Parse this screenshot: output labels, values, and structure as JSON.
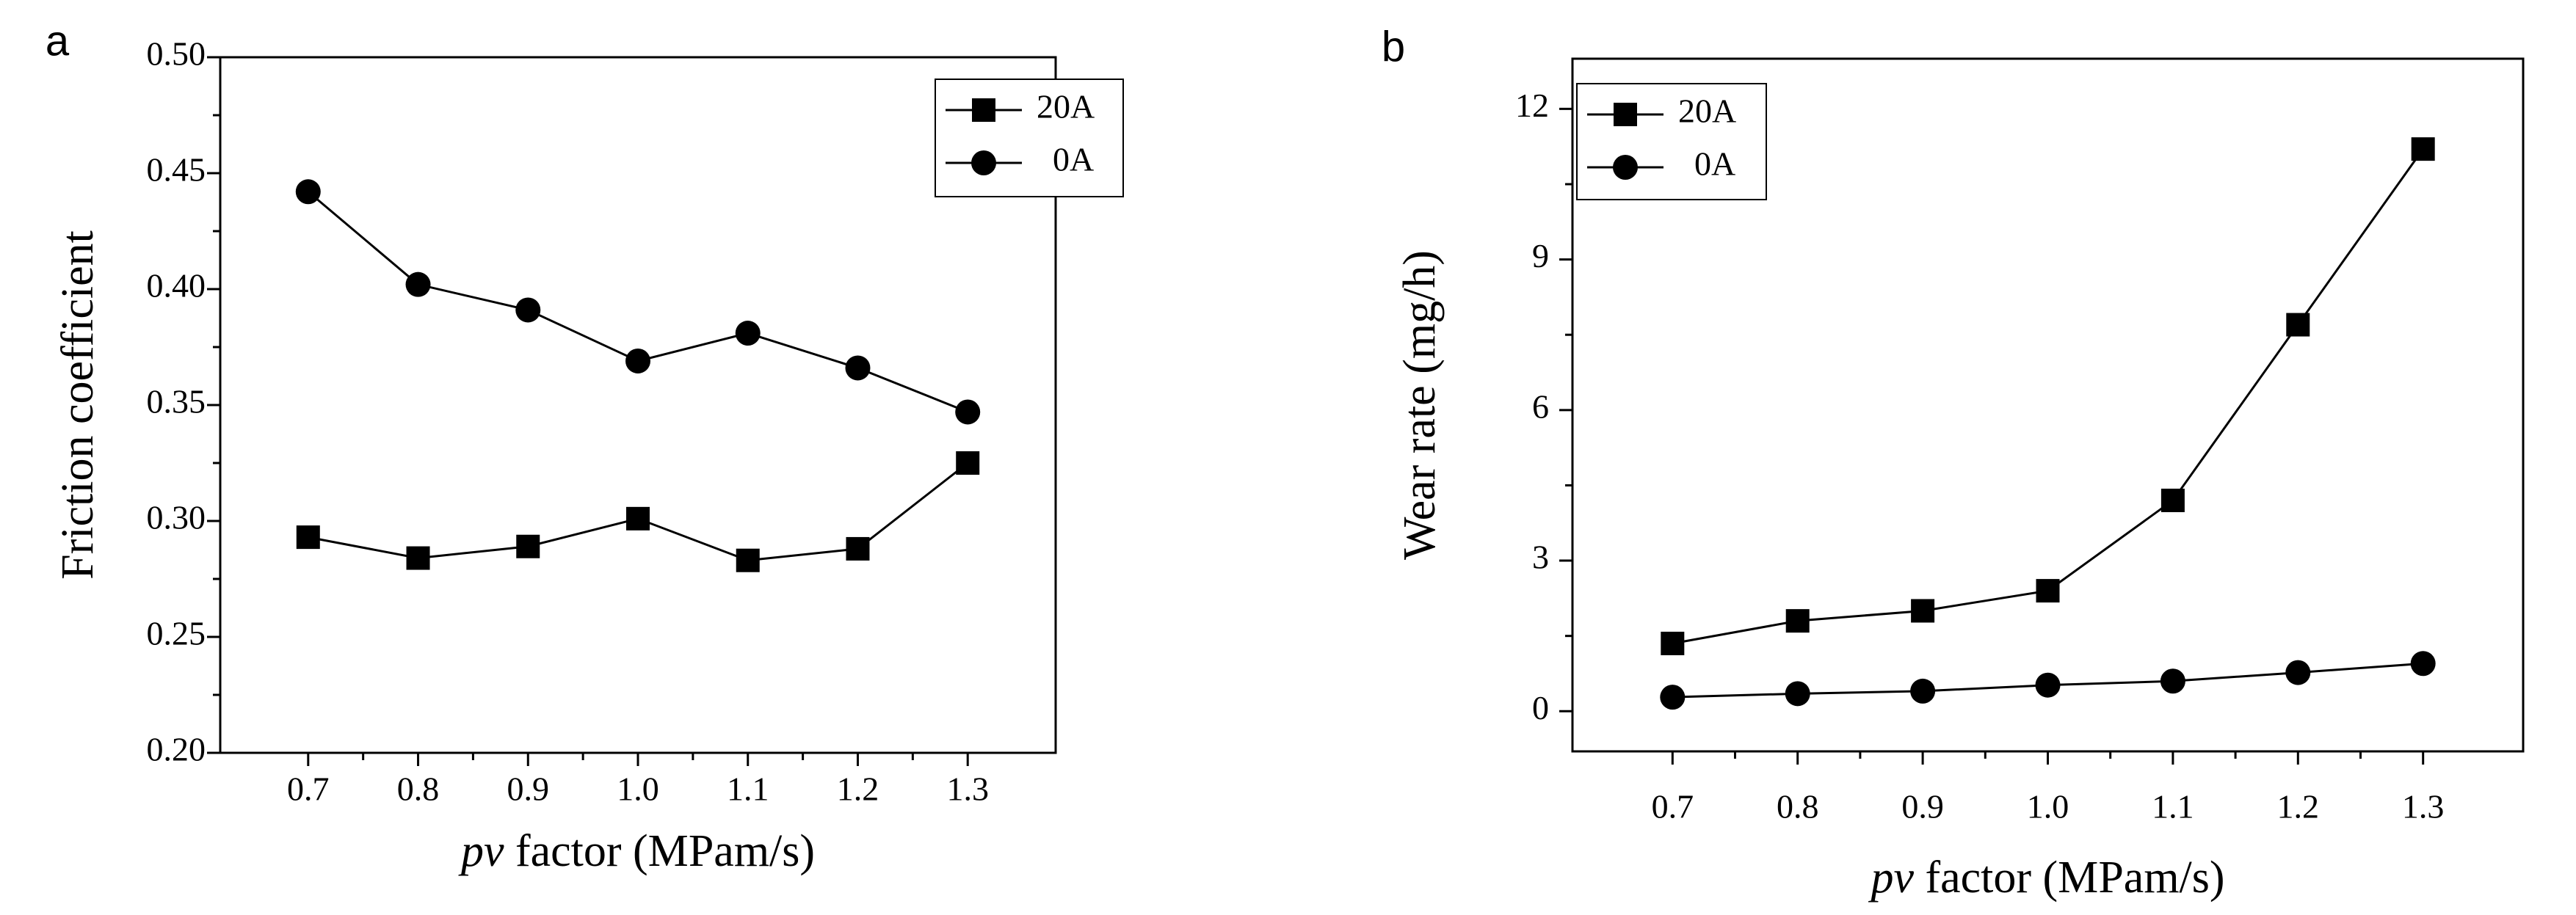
{
  "chart_data": [
    {
      "type": "line",
      "panel_label": "a",
      "title": "",
      "xlabel": {
        "italic": "pv",
        "rest": " factor (MPam/s)"
      },
      "ylabel": "Friction coefficient",
      "xlim": [
        0.62,
        1.38
      ],
      "ylim": [
        0.2,
        0.5
      ],
      "xticks": [
        "0.7",
        "0.8",
        "0.9",
        "1.0",
        "1.1",
        "1.2",
        "1.3"
      ],
      "yticks": [
        "0.20",
        "0.25",
        "0.30",
        "0.35",
        "0.40",
        "0.45",
        "0.50"
      ],
      "grid": false,
      "legend_position": "top-right",
      "x": [
        0.7,
        0.8,
        0.9,
        1.0,
        1.1,
        1.2,
        1.3
      ],
      "series": [
        {
          "name": "20A",
          "marker": "square",
          "values": [
            0.293,
            0.284,
            0.289,
            0.301,
            0.283,
            0.288,
            0.325
          ]
        },
        {
          "name": "0A",
          "marker": "circle",
          "values": [
            0.442,
            0.402,
            0.391,
            0.369,
            0.381,
            0.366,
            0.347
          ]
        }
      ]
    },
    {
      "type": "line",
      "panel_label": "b",
      "title": "",
      "xlabel": {
        "italic": "pv",
        "rest": " factor (MPam/s)"
      },
      "ylabel": "Wear rate (mg/h)",
      "xlim": [
        0.62,
        1.38
      ],
      "ylim": [
        -0.8,
        13
      ],
      "xticks": [
        "0.7",
        "0.8",
        "0.9",
        "1.0",
        "1.1",
        "1.2",
        "1.3"
      ],
      "yticks": [
        "0",
        "3",
        "6",
        "9",
        "12"
      ],
      "grid": false,
      "legend_position": "top-left",
      "x": [
        0.7,
        0.8,
        0.9,
        1.0,
        1.1,
        1.2,
        1.3
      ],
      "series": [
        {
          "name": "20A",
          "marker": "square",
          "values": [
            1.35,
            1.8,
            2.0,
            2.4,
            4.2,
            7.7,
            11.2
          ]
        },
        {
          "name": "0A",
          "marker": "circle",
          "values": [
            0.28,
            0.35,
            0.4,
            0.52,
            0.6,
            0.77,
            0.95
          ]
        }
      ]
    }
  ]
}
